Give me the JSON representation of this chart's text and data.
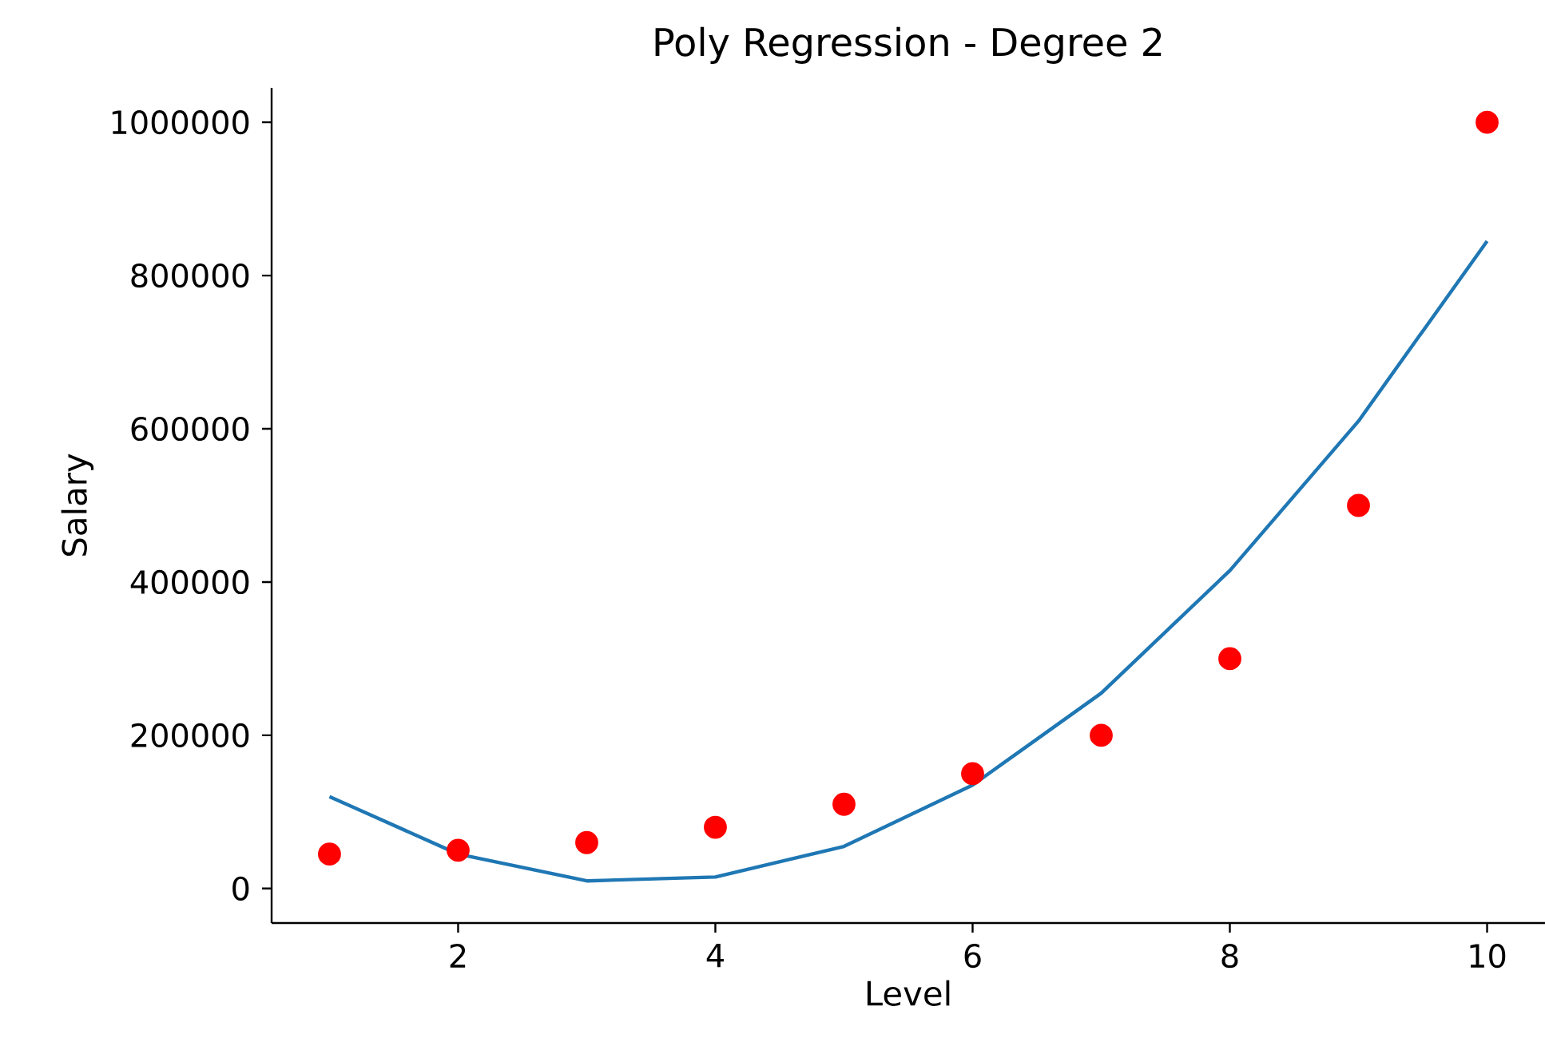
{
  "chart_data": {
    "type": "scatter",
    "title": "Poly Regression - Degree 2",
    "xlabel": "Level",
    "ylabel": "Salary",
    "x": [
      1,
      2,
      3,
      4,
      5,
      6,
      7,
      8,
      9,
      10
    ],
    "series": [
      {
        "color": "#ff0000",
        "marker": "circle",
        "values": [
          45000,
          50000,
          60000,
          80000,
          110000,
          150000,
          200000,
          300000,
          500000,
          1000000
        ]
      },
      {
        "type": "line",
        "color": "#1f77b4",
        "line_style": "solid",
        "values": [
          120000,
          45000,
          10000,
          15000,
          55000,
          135000,
          255000,
          415000,
          610000,
          845000
        ]
      }
    ],
    "xlim": [
      0.55,
      10.45
    ],
    "ylim": [
      -45000,
      1045000
    ],
    "xticks": [
      2,
      4,
      6,
      8,
      10
    ],
    "yticks": [
      0,
      200000,
      400000,
      600000,
      800000,
      1000000
    ],
    "grid": false
  }
}
